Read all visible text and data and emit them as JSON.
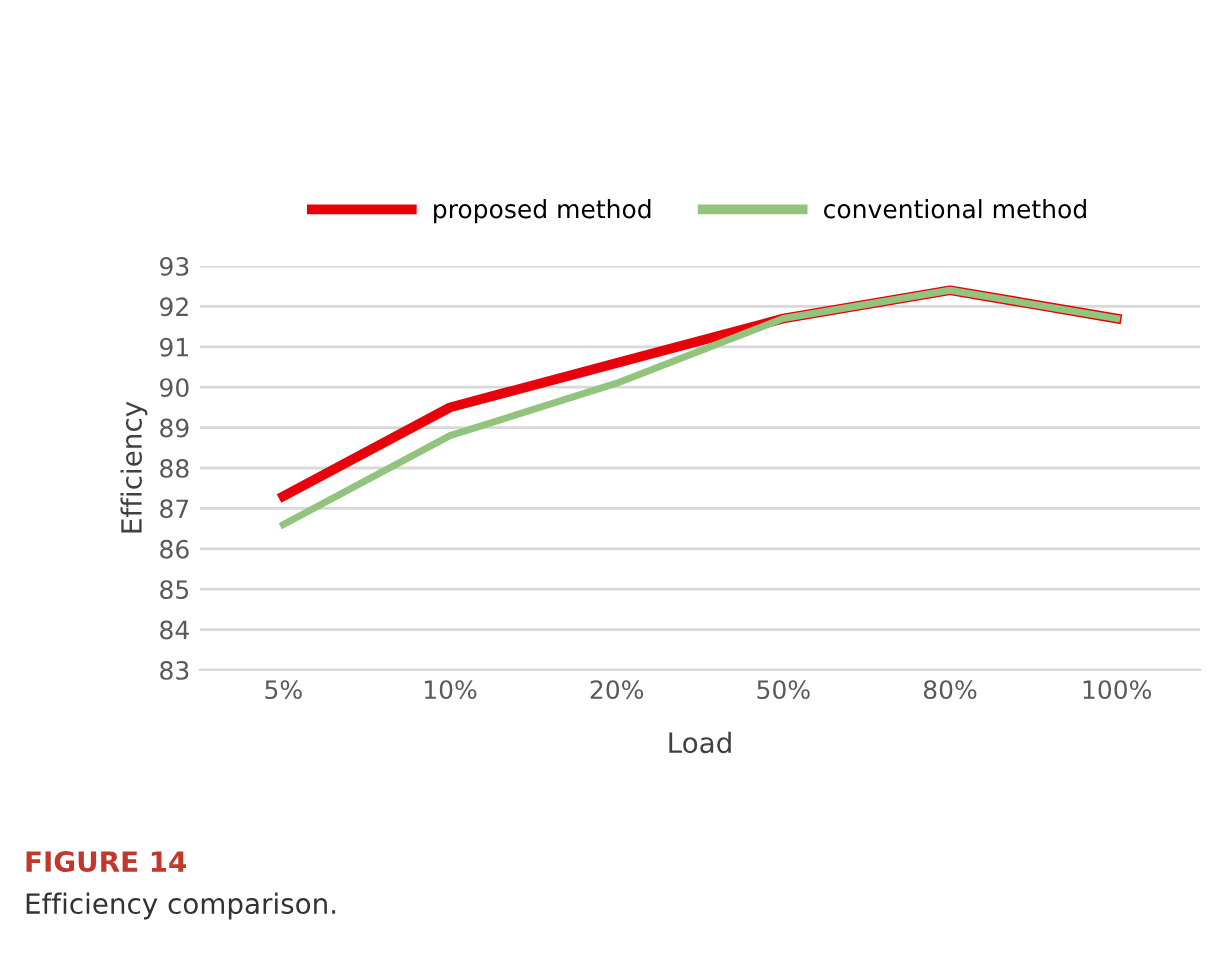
{
  "chart_data": {
    "type": "line",
    "xlabel": "Load",
    "ylabel": "Efficiency",
    "categories": [
      "5%",
      "10%",
      "20%",
      "50%",
      "80%",
      "100%"
    ],
    "series": [
      {
        "name": "proposed method",
        "color": "#e8000b",
        "values": [
          87.3,
          89.5,
          90.6,
          91.7,
          92.4,
          91.7
        ]
      },
      {
        "name": "conventional method",
        "color": "#93c47d",
        "values": [
          86.6,
          88.8,
          90.1,
          91.7,
          92.4,
          91.7
        ]
      }
    ],
    "ylim": [
      83,
      93
    ],
    "yticks": [
      83,
      84,
      85,
      86,
      87,
      88,
      89,
      90,
      91,
      92,
      93
    ],
    "grid": "y",
    "legend": "top",
    "marker": "none",
    "line_style": "solid",
    "annotations": [
      "FIGURE 14",
      "Efficiency comparison."
    ]
  }
}
